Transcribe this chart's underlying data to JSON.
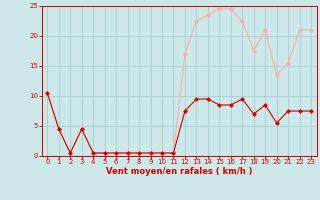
{
  "x": [
    0,
    1,
    2,
    3,
    4,
    5,
    6,
    7,
    8,
    9,
    10,
    11,
    12,
    13,
    14,
    15,
    16,
    17,
    18,
    19,
    20,
    21,
    22,
    23
  ],
  "y_avg": [
    10.5,
    4.5,
    0.5,
    4.5,
    0.5,
    0.5,
    0.5,
    0.5,
    0.5,
    0.5,
    0.5,
    0.5,
    7.5,
    9.5,
    9.5,
    8.5,
    8.5,
    9.5,
    7.0,
    8.5,
    5.5,
    7.5,
    7.5,
    7.5
  ],
  "y_gust": [
    10.5,
    4.5,
    0.5,
    4.5,
    0.5,
    0.5,
    0.5,
    0.5,
    0.5,
    0.5,
    0.5,
    0.5,
    17.0,
    22.5,
    23.5,
    24.5,
    24.5,
    22.5,
    17.5,
    21.0,
    13.5,
    15.5,
    21.0,
    21.0
  ],
  "color_avg": "#cc0000",
  "color_gust": "#ffaaaa",
  "bg_color": "#cce8e8",
  "grid_color": "#aacccc",
  "ylim": [
    0,
    25
  ],
  "yticks": [
    0,
    5,
    10,
    15,
    20,
    25
  ],
  "xlim": [
    -0.5,
    23.5
  ],
  "xticks": [
    0,
    1,
    2,
    3,
    4,
    5,
    6,
    7,
    8,
    9,
    10,
    11,
    12,
    13,
    14,
    15,
    16,
    17,
    18,
    19,
    20,
    21,
    22,
    23
  ],
  "xlabel": "Vent moyen/en rafales ( km/h )",
  "marker": "D",
  "markersize": 2.0,
  "linewidth": 0.8,
  "xlabel_color": "#cc0000",
  "tick_color": "#cc0000",
  "axis_color": "#cc0000",
  "tick_fontsize": 5.0,
  "xlabel_fontsize": 6.0
}
